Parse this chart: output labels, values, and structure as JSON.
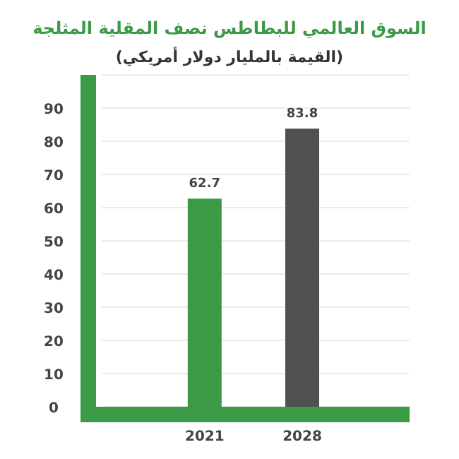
{
  "chart_data": {
    "type": "bar",
    "title": "السوق العالمي للبطاطس نصف المقلية المثلجة",
    "subtitle": "(القيمة بالمليار دولار أمريكي)",
    "categories": [
      "2021",
      "2028"
    ],
    "values": [
      62.7,
      83.8
    ],
    "colors": [
      "#3a9a45",
      "#505050"
    ],
    "ylim": [
      0,
      100
    ],
    "yticks": [
      0,
      10,
      20,
      30,
      40,
      50,
      60,
      70,
      80,
      90
    ],
    "grid": "y",
    "data_labels": true
  }
}
